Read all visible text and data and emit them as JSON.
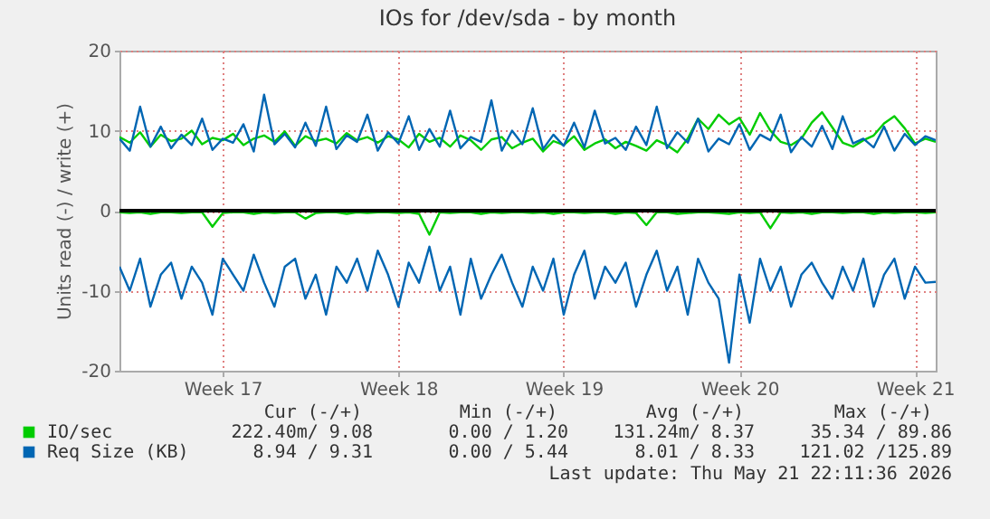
{
  "chart_data": {
    "type": "line",
    "title": "IOs for /dev/sda - by month",
    "ylabel": "Units read (-) / write (+)",
    "categories": [
      null,
      null,
      null,
      null,
      null,
      null,
      null,
      null,
      null,
      null,
      "Week 17",
      null,
      null,
      null,
      null,
      null,
      null,
      null,
      null,
      null,
      null,
      null,
      null,
      null,
      null,
      null,
      null,
      "Week 18",
      null,
      null,
      null,
      null,
      null,
      null,
      null,
      null,
      null,
      null,
      null,
      null,
      null,
      null,
      null,
      "Week 19",
      null,
      null,
      null,
      null,
      null,
      null,
      null,
      null,
      null,
      null,
      null,
      null,
      null,
      null,
      null,
      null,
      "Week 20",
      null,
      null,
      null,
      null,
      null,
      null,
      null,
      null,
      null,
      null,
      null,
      null,
      null,
      null,
      null,
      null,
      "Week 21",
      null,
      null
    ],
    "series": [
      {
        "name": "IO/sec",
        "color": "#00cc00",
        "values": [
          9.2,
          8.5,
          9.8,
          8.0,
          9.5,
          8.7,
          9.0,
          10.0,
          8.3,
          9.1,
          8.8,
          9.6,
          8.2,
          9.0,
          9.4,
          8.6,
          9.9,
          8.1,
          9.3,
          8.7,
          9.0,
          8.4,
          9.7,
          8.8,
          9.2,
          8.5,
          9.3,
          8.9,
          7.9,
          9.6,
          8.6,
          9.1,
          8.0,
          9.4,
          8.8,
          7.6,
          8.9,
          9.2,
          7.8,
          8.5,
          9.0,
          7.4,
          8.7,
          8.2,
          9.3,
          7.6,
          8.4,
          8.9,
          7.8,
          8.6,
          8.1,
          7.5,
          8.8,
          8.2,
          7.3,
          9.0,
          11.5,
          10.2,
          12.0,
          10.8,
          11.6,
          9.5,
          12.2,
          10.0,
          8.6,
          8.2,
          9.0,
          11.0,
          12.3,
          10.4,
          8.5,
          8.0,
          8.8,
          9.4,
          10.9,
          11.8,
          10.3,
          8.4,
          9.0,
          8.6
        ]
      },
      {
        "color": "#00cc00",
        "values": [
          -0.2,
          -0.3,
          -0.2,
          -0.4,
          -0.2,
          -0.2,
          -0.3,
          -0.2,
          -0.2,
          -2.0,
          -0.3,
          -0.2,
          -0.2,
          -0.4,
          -0.2,
          -0.3,
          -0.2,
          -0.2,
          -1.0,
          -0.3,
          -0.2,
          -0.2,
          -0.4,
          -0.2,
          -0.3,
          -0.2,
          -0.2,
          -0.3,
          -0.2,
          -0.4,
          -3.0,
          -0.2,
          -0.3,
          -0.2,
          -0.2,
          -0.4,
          -0.2,
          -0.3,
          -0.2,
          -0.2,
          -0.3,
          -0.2,
          -0.4,
          -0.2,
          -0.2,
          -0.3,
          -0.2,
          -0.2,
          -0.4,
          -0.2,
          -0.3,
          -1.8,
          -0.2,
          -0.2,
          -0.4,
          -0.3,
          -0.2,
          -0.2,
          -0.3,
          -0.4,
          -0.2,
          -0.3,
          -0.2,
          -2.2,
          -0.2,
          -0.3,
          -0.2,
          -0.4,
          -0.2,
          -0.2,
          -0.3,
          -0.2,
          -0.2,
          -0.4,
          -0.2,
          -0.3,
          -0.2,
          -0.2,
          -0.3,
          -0.2
        ]
      },
      {
        "name": "Req Size (KB)",
        "color": "#0066b3",
        "values": [
          9.0,
          7.5,
          13.0,
          8.0,
          10.5,
          7.8,
          9.5,
          8.2,
          11.5,
          7.6,
          9.0,
          8.5,
          10.8,
          7.4,
          14.5,
          8.3,
          9.6,
          7.9,
          11.0,
          8.1,
          13.0,
          7.7,
          9.4,
          8.6,
          12.0,
          7.5,
          9.8,
          8.4,
          11.8,
          7.6,
          10.2,
          8.0,
          12.5,
          7.8,
          9.2,
          8.6,
          13.8,
          7.5,
          10.0,
          8.3,
          12.8,
          7.7,
          9.5,
          8.1,
          11.0,
          7.9,
          12.5,
          8.4,
          9.1,
          7.6,
          10.5,
          8.2,
          13.0,
          7.8,
          9.8,
          8.5,
          11.5,
          7.4,
          9.0,
          8.3,
          10.8,
          7.6,
          9.5,
          8.8,
          12.0,
          7.3,
          9.2,
          8.0,
          10.6,
          7.7,
          11.8,
          8.4,
          9.0,
          7.9,
          10.5,
          7.5,
          9.6,
          8.2,
          9.3,
          8.8
        ]
      },
      {
        "color": "#0066b3",
        "values": [
          -7,
          -10,
          -6,
          -12,
          -8,
          -6.5,
          -11,
          -7,
          -9,
          -13,
          -6,
          -8,
          -10,
          -5.5,
          -9,
          -12,
          -7,
          -6,
          -11,
          -8,
          -13,
          -7,
          -9,
          -6,
          -10,
          -5,
          -8,
          -12,
          -6.5,
          -9,
          -4.5,
          -10,
          -7,
          -13,
          -6,
          -11,
          -8,
          -5.5,
          -9,
          -12,
          -7,
          -10,
          -6,
          -13,
          -8,
          -5,
          -11,
          -7,
          -9,
          -6.5,
          -12,
          -8,
          -5,
          -10,
          -7,
          -13,
          -6,
          -9,
          -11,
          -19,
          -8,
          -14,
          -6,
          -10,
          -7,
          -12,
          -8,
          -6.5,
          -9,
          -11,
          -7,
          -10,
          -6,
          -12,
          -8,
          -6,
          -11,
          -7,
          -9,
          -8.9
        ]
      }
    ],
    "ylim": [
      -20,
      20
    ],
    "yticks": [
      -20,
      -10,
      0,
      10,
      20
    ],
    "grid": true,
    "legend": "bottom",
    "ref_lines": [
      {
        "axis": "y",
        "value": 0,
        "color": "#000000"
      }
    ],
    "annotations": [
      "Cur (-/+)",
      "Min (-/+)",
      "Avg (-/+)",
      "Max (-/+)",
      "222.40m/  9.08",
      "0.00 /  1.20",
      "131.24m/  8.37",
      "35.34 / 89.86",
      "8.94 /  9.31",
      "0.00 /  5.44",
      "8.01 /  8.33",
      "121.02 /125.89",
      "Last update: Thu May 21 22:11:36 2026"
    ]
  }
}
